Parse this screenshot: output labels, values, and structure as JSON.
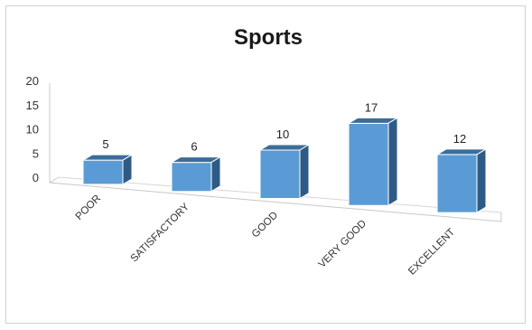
{
  "chart_data": {
    "type": "bar",
    "title": "Sports",
    "categories": [
      "POOR",
      "SATISFACTORY",
      "GOOD",
      "VERY GOOD",
      "EXCELLENT"
    ],
    "series": [
      {
        "values": [
          5,
          6,
          10,
          17,
          12
        ]
      }
    ],
    "ylim": [
      0,
      20
    ],
    "yticks": [
      "0",
      "5",
      "10",
      "15",
      "20"
    ],
    "grid": false,
    "legend": "none",
    "style": "3d-column",
    "colors": {
      "front": "#5b9bd5",
      "top": "#3c6d99",
      "side": "#2e5b85",
      "outline": "#ffffff"
    }
  }
}
